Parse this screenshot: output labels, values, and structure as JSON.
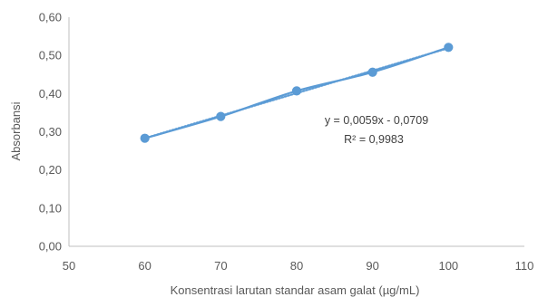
{
  "chart_data": {
    "type": "scatter",
    "x": [
      60,
      70,
      80,
      90,
      100
    ],
    "y": [
      0.283,
      0.34,
      0.407,
      0.456,
      0.521
    ],
    "xlabel": "Konsentrasi larutan standar asam galat (µg/mL)",
    "ylabel": "Absorbansi",
    "xlim": [
      50,
      110
    ],
    "ylim": [
      0.0,
      0.6
    ],
    "xticks": [
      50,
      60,
      70,
      80,
      90,
      100,
      110
    ],
    "yticks": [
      0.0,
      0.1,
      0.2,
      0.3,
      0.4,
      0.5,
      0.6
    ],
    "xtick_labels": [
      "50",
      "60",
      "70",
      "80",
      "90",
      "100",
      "110"
    ],
    "ytick_labels": [
      "0,00",
      "0,10",
      "0,20",
      "0,30",
      "0,40",
      "0,50",
      "0,60"
    ],
    "grid": false,
    "connect_points": true,
    "trendline": {
      "type": "linear",
      "slope": 0.0059,
      "intercept": -0.0709,
      "style": "dotted",
      "equation_label": "y = 0,0059x - 0,0709",
      "r2_label": "R² = 0,9983"
    },
    "colors": {
      "series": "#5b9bd5",
      "axis": "#bfbfbf",
      "text": "#595959"
    }
  }
}
